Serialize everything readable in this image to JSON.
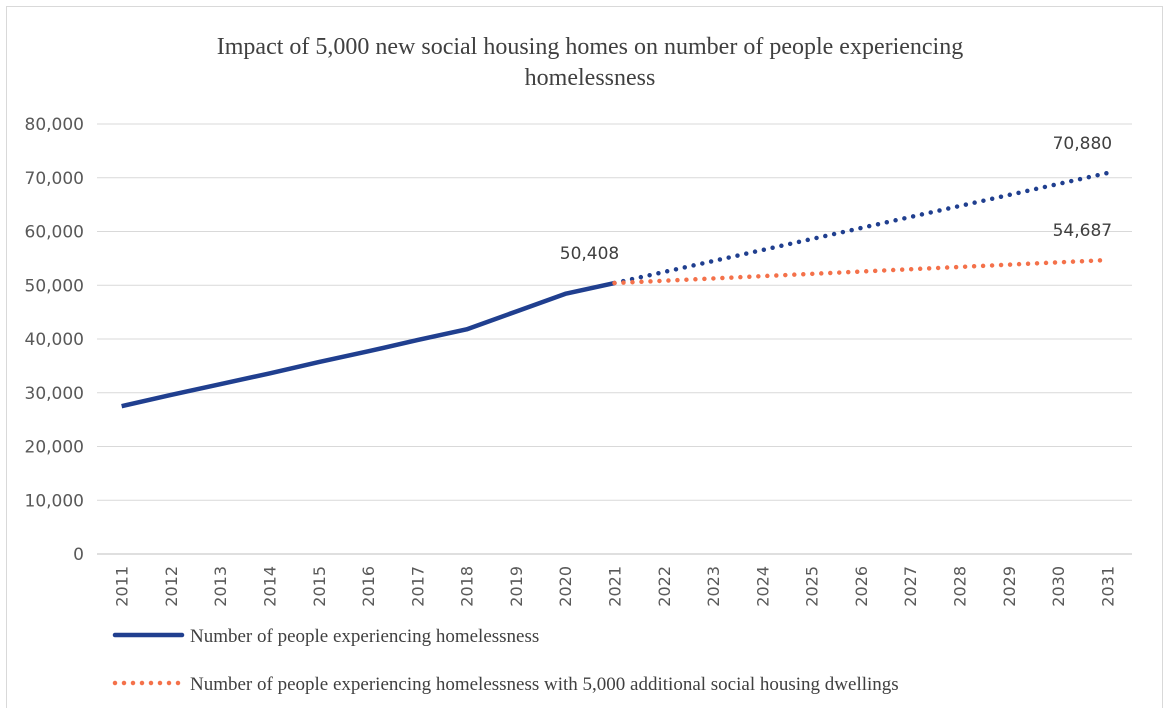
{
  "chart_data": {
    "type": "line",
    "title": "Impact of 5,000 new social housing homes on number of people experiencing homelessness",
    "xlabel": "",
    "ylabel": "",
    "ylim": [
      0,
      80000
    ],
    "y_ticks": [
      "0",
      "10,000",
      "20,000",
      "30,000",
      "40,000",
      "50,000",
      "60,000",
      "70,000",
      "80,000"
    ],
    "categories": [
      "2011",
      "2012",
      "2013",
      "2014",
      "2015",
      "2016",
      "2017",
      "2018",
      "2019",
      "2020",
      "2021",
      "2022",
      "2023",
      "2024",
      "2025",
      "2026",
      "2027",
      "2028",
      "2029",
      "2030",
      "2031"
    ],
    "grid": true,
    "legend_position": "bottom-left",
    "series": [
      {
        "name": "Number of people experiencing homelessness",
        "color": "#203f8f",
        "style": "solid-then-dotted",
        "values": [
          27500,
          29600,
          31600,
          33600,
          35700,
          37700,
          39800,
          41800,
          45100,
          48400,
          50408,
          52455,
          54502,
          56549,
          58596,
          60644,
          62691,
          64738,
          66785,
          68832,
          70880
        ]
      },
      {
        "name": "Number of people experiencing homelessness with 5,000 additional social housing dwellings",
        "color": "#f4714a",
        "style": "dotted",
        "values": [
          null,
          null,
          null,
          null,
          null,
          null,
          null,
          null,
          null,
          null,
          50408,
          50836,
          51264,
          51692,
          52120,
          52548,
          52975,
          53403,
          53831,
          54259,
          54687
        ]
      }
    ],
    "data_labels": [
      {
        "text": "50,408",
        "series": 0,
        "index": 10
      },
      {
        "text": "70,880",
        "series": 0,
        "index": 20
      },
      {
        "text": "54,687",
        "series": 1,
        "index": 20
      }
    ]
  }
}
